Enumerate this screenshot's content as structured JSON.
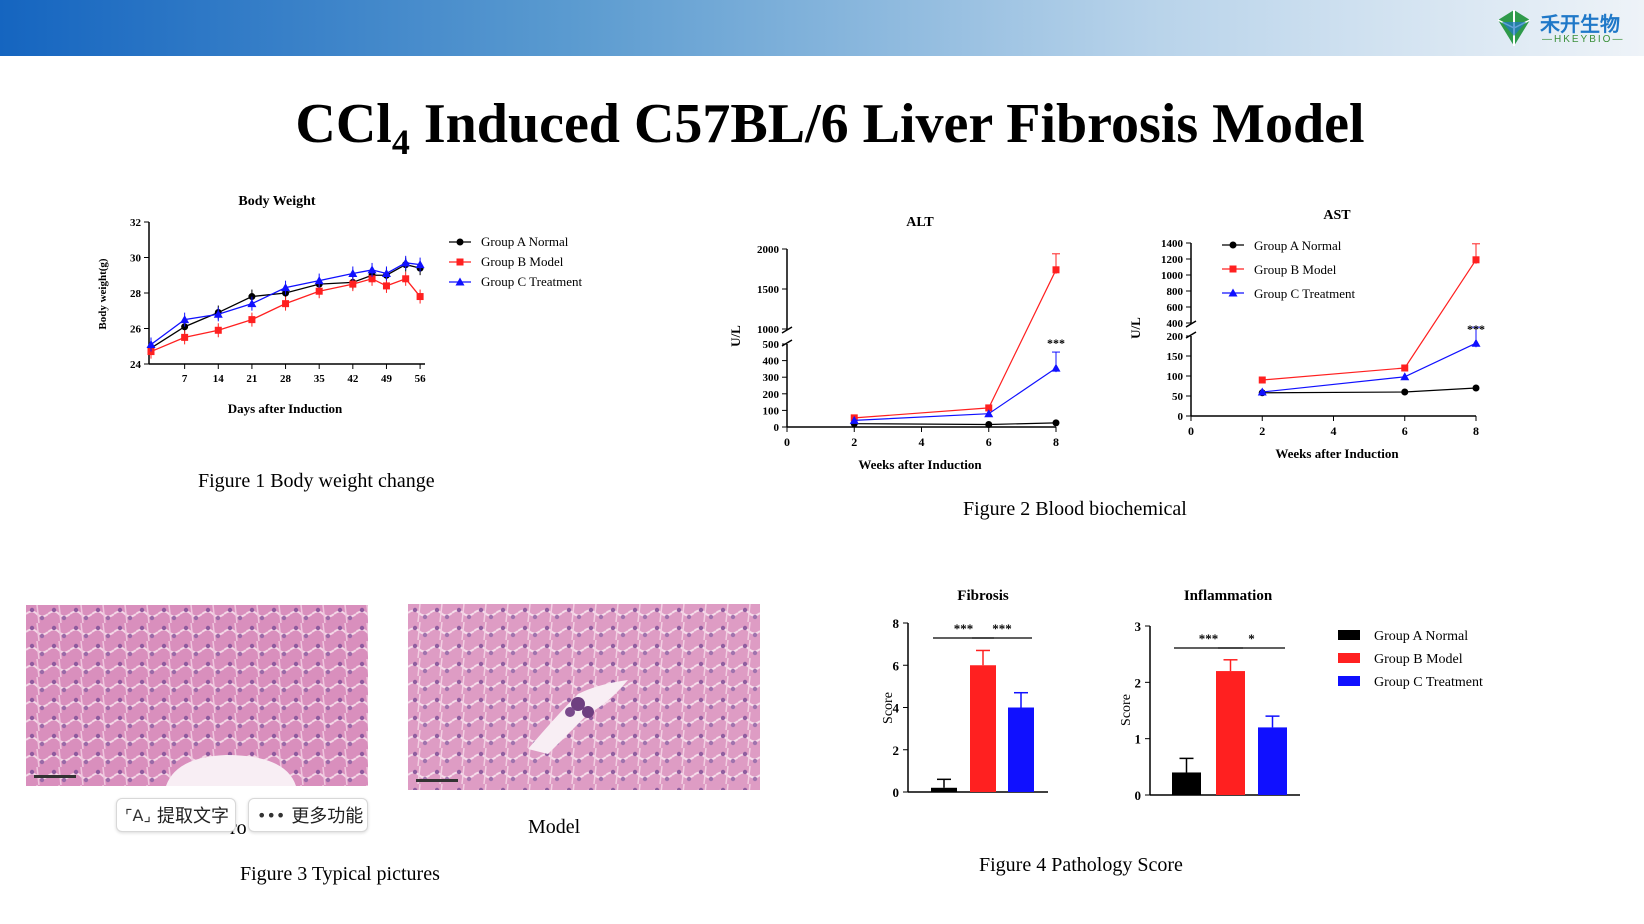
{
  "header": {
    "logo_cn": "禾开生物",
    "logo_en": "—HKEYBIO—"
  },
  "title": {
    "main": "CCl",
    "sub": "4",
    "rest": " Induced C57BL/6 Liver Fibrosis Model"
  },
  "legend_labels": [
    "Group A Normal",
    "Group B Model",
    "Group C Treatment"
  ],
  "colors": {
    "a": "#000000",
    "b": "#ff2020",
    "c": "#1010ff"
  },
  "captions": {
    "fig1": "Figure 1 Body weight change",
    "fig2": "Figure 2 Blood biochemical",
    "fig3": "Figure 3 Typical pictures",
    "fig4": "Figure 4 Pathology Score",
    "model": "Model",
    "control_partial": "ro"
  },
  "toolbar": {
    "extract": "提取文字",
    "more": "更多功能"
  },
  "chart_data": [
    {
      "type": "line",
      "title": "Body Weight",
      "xlabel": "Days after Induction",
      "ylabel": "Body weight(g)",
      "x": [
        0,
        7,
        14,
        21,
        28,
        35,
        42,
        46,
        49,
        53,
        56
      ],
      "xticks": [
        7,
        14,
        21,
        28,
        35,
        42,
        49,
        56
      ],
      "yticks": [
        24,
        26,
        28,
        30,
        32
      ],
      "ylim": [
        24,
        32
      ],
      "series": [
        {
          "name": "Group A Normal",
          "values": [
            24.9,
            26.1,
            26.9,
            27.8,
            28.0,
            28.5,
            28.6,
            29.0,
            29.0,
            29.6,
            29.4
          ]
        },
        {
          "name": "Group B Model",
          "values": [
            24.7,
            25.5,
            25.9,
            26.5,
            27.4,
            28.1,
            28.5,
            28.8,
            28.4,
            28.8,
            27.8
          ]
        },
        {
          "name": "Group C Treatment",
          "values": [
            25.1,
            26.5,
            26.8,
            27.4,
            28.3,
            28.7,
            29.1,
            29.3,
            29.1,
            29.7,
            29.6
          ]
        }
      ]
    },
    {
      "type": "line",
      "title": "ALT",
      "xlabel": "Weeks after Induction",
      "ylabel": "U/L",
      "x": [
        2,
        6,
        8
      ],
      "xticks": [
        0,
        2,
        4,
        6,
        8
      ],
      "yticks_low": [
        0,
        100,
        200,
        300,
        400,
        500
      ],
      "yticks_high": [
        1000,
        1500,
        2000
      ],
      "annotation": "***",
      "series": [
        {
          "name": "Group A Normal",
          "values": [
            20,
            15,
            25
          ]
        },
        {
          "name": "Group B Model",
          "values": [
            55,
            115,
            1740
          ]
        },
        {
          "name": "Group C Treatment",
          "values": [
            40,
            80,
            355
          ]
        }
      ]
    },
    {
      "type": "line",
      "title": "AST",
      "xlabel": "Weeks after Induction",
      "ylabel": "U/L",
      "x": [
        2,
        6,
        8
      ],
      "xticks": [
        0,
        2,
        4,
        6,
        8
      ],
      "yticks_low": [
        0,
        50,
        100,
        150,
        200
      ],
      "yticks_high": [
        400,
        600,
        800,
        1000,
        1200,
        1400
      ],
      "annotation": "***",
      "series": [
        {
          "name": "Group A Normal",
          "values": [
            58,
            60,
            70
          ]
        },
        {
          "name": "Group B Model",
          "values": [
            90,
            120,
            1190
          ]
        },
        {
          "name": "Group C Treatment",
          "values": [
            60,
            98,
            182
          ]
        }
      ]
    },
    {
      "type": "bar",
      "title": "Fibrosis",
      "ylabel": "Score",
      "categories": [
        "Group A Normal",
        "Group B Model",
        "Group C Treatment"
      ],
      "values": [
        0.2,
        6.0,
        4.0
      ],
      "errors": [
        0.4,
        0.7,
        0.7
      ],
      "yticks": [
        0,
        2,
        4,
        6,
        8
      ],
      "ylim": [
        0,
        8
      ],
      "significance": [
        "***",
        "***"
      ]
    },
    {
      "type": "bar",
      "title": "Inflammation",
      "ylabel": "Score",
      "categories": [
        "Group A Normal",
        "Group B Model",
        "Group C Treatment"
      ],
      "values": [
        0.4,
        2.2,
        1.2
      ],
      "errors": [
        0.25,
        0.2,
        0.2
      ],
      "yticks": [
        0,
        1,
        2,
        3
      ],
      "ylim": [
        0,
        3
      ],
      "significance": [
        "***",
        "*"
      ]
    }
  ]
}
